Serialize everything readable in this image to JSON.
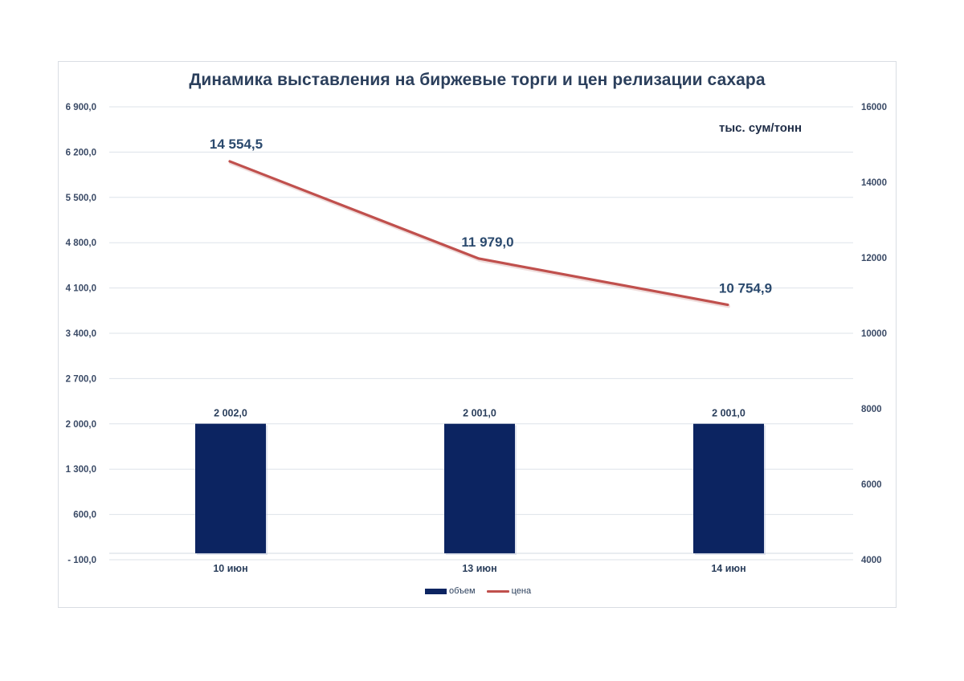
{
  "chart_data": {
    "type": "bar+line",
    "title": "Динамика выставления на биржевые торги и цен релизации сахара",
    "categories": [
      "10 июн",
      "13 июн",
      "14 июн"
    ],
    "series": [
      {
        "name": "объем",
        "type": "bar",
        "axis": "left",
        "color": "#0c2461",
        "values": [
          2002.0,
          2001.0,
          2001.0
        ],
        "labels": [
          "2 002,0",
          "2 001,0",
          "2 001,0"
        ]
      },
      {
        "name": "цена",
        "type": "line",
        "axis": "right",
        "color": "#c0504d",
        "values": [
          14554.5,
          11979.0,
          10754.9
        ],
        "labels": [
          "14 554,5",
          "11 979,0",
          "10 754,9"
        ]
      }
    ],
    "left_axis": {
      "ylim": [
        -100,
        6900
      ],
      "ticks": [
        "6 900,0",
        "6 200,0",
        "5 500,0",
        "4 800,0",
        "4 100,0",
        "3 400,0",
        "2 700,0",
        "2 000,0",
        "1 300,0",
        "600,0",
        "- 100,0"
      ]
    },
    "right_axis": {
      "ylim": [
        4000,
        16000
      ],
      "ticks": [
        "16000",
        "14000",
        "12000",
        "10000",
        "8000",
        "6000",
        "4000"
      ],
      "unit_label": "тыс. сум/тонн"
    },
    "xlabel": "",
    "grid": true,
    "legend_position": "bottom",
    "legend": [
      "объем",
      "цена"
    ]
  },
  "colors": {
    "bar": "#0c2461",
    "line": "#c0504d",
    "text": "#2b3f5c",
    "grid": "#dde3ea"
  }
}
